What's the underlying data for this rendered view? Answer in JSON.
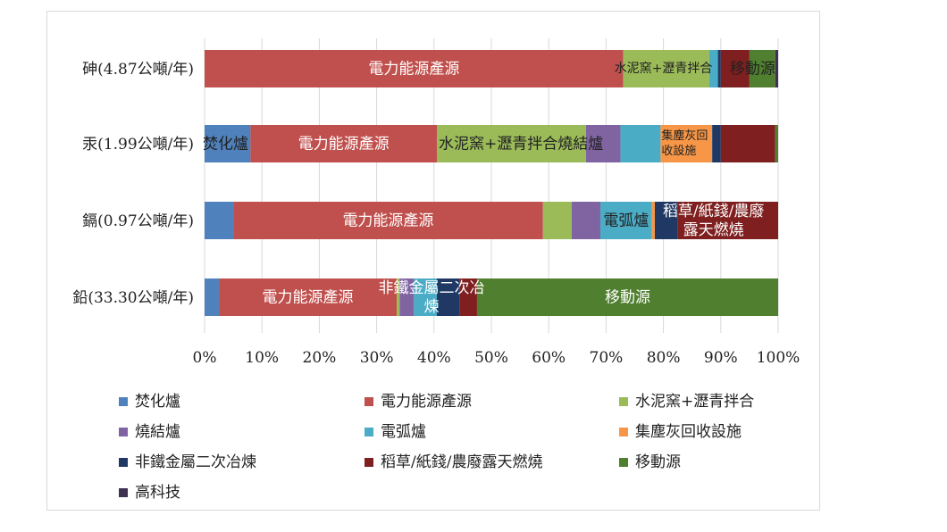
{
  "chart_data": {
    "type": "bar",
    "orientation": "horizontal",
    "stacked": "percent",
    "categories": [
      "砷(4.87公噸/年)",
      "汞(1.99公噸/年)",
      "鎘(0.97公噸/年)",
      "鉛(33.30公噸/年)"
    ],
    "x_ticks": [
      "0%",
      "10%",
      "20%",
      "30%",
      "40%",
      "50%",
      "60%",
      "70%",
      "80%",
      "90%",
      "100%"
    ],
    "xlim": [
      0,
      100
    ],
    "grid": "vertical",
    "legend_position": "bottom",
    "series": [
      {
        "name": "焚化爐",
        "color": "#4f81bd",
        "values": [
          0,
          8.0,
          5.0,
          2.5
        ]
      },
      {
        "name": "電力能源產源",
        "color": "#c0504d",
        "values": [
          73.0,
          32.5,
          54.0,
          31.0
        ]
      },
      {
        "name": "水泥窯+瀝青拌合",
        "color": "#9bbb59",
        "values": [
          15.0,
          26.0,
          5.0,
          0.5
        ]
      },
      {
        "name": "燒結爐",
        "color": "#8064a2",
        "values": [
          0,
          6.0,
          5.0,
          2.5
        ]
      },
      {
        "name": "電弧爐",
        "color": "#4bacc6",
        "values": [
          1.5,
          7.0,
          9.0,
          4.0
        ]
      },
      {
        "name": "集塵灰回收設施",
        "color": "#f79646",
        "values": [
          0,
          9.0,
          0.5,
          0
        ]
      },
      {
        "name": "非鐵金屬二次冶煉",
        "color": "#1f3864",
        "values": [
          0.5,
          1.5,
          4.0,
          4.0
        ]
      },
      {
        "name": "稻草/紙錢/農廢露天燃燒",
        "color": "#7f1f1f",
        "values": [
          5.0,
          9.5,
          17.5,
          3.0
        ]
      },
      {
        "name": "移動源",
        "color": "#4f7f2f",
        "values": [
          4.5,
          0.5,
          0,
          52.5
        ]
      },
      {
        "name": "高科技",
        "color": "#3f3151",
        "values": [
          0.5,
          0,
          0,
          0
        ]
      }
    ],
    "bar_labels": [
      {
        "row": 0,
        "series": 1,
        "text": "電力能源產源"
      },
      {
        "row": 0,
        "series": 2,
        "text": "水泥窯+瀝青拌合"
      },
      {
        "row": 0,
        "series": 8,
        "text": "移動源"
      },
      {
        "row": 1,
        "series": 0,
        "text": "焚化爐"
      },
      {
        "row": 1,
        "series": 1,
        "text": "電力能源產源"
      },
      {
        "row": 1,
        "series": 2,
        "text": "水泥窯+瀝青拌合燒結爐"
      },
      {
        "row": 1,
        "series": 5,
        "text": "集塵灰回\n收設施"
      },
      {
        "row": 2,
        "series": 1,
        "text": "電力能源產源"
      },
      {
        "row": 2,
        "series": 4,
        "text": "電弧爐"
      },
      {
        "row": 2,
        "series": 7,
        "text": "稻草/紙錢/農廢\n露天燃燒"
      },
      {
        "row": 3,
        "series": 1,
        "text": "電力能源產源"
      },
      {
        "row": 3,
        "series": 6,
        "text": "非鐵金屬二次冶\n煉"
      },
      {
        "row": 3,
        "series": 8,
        "text": "移動源"
      }
    ]
  }
}
